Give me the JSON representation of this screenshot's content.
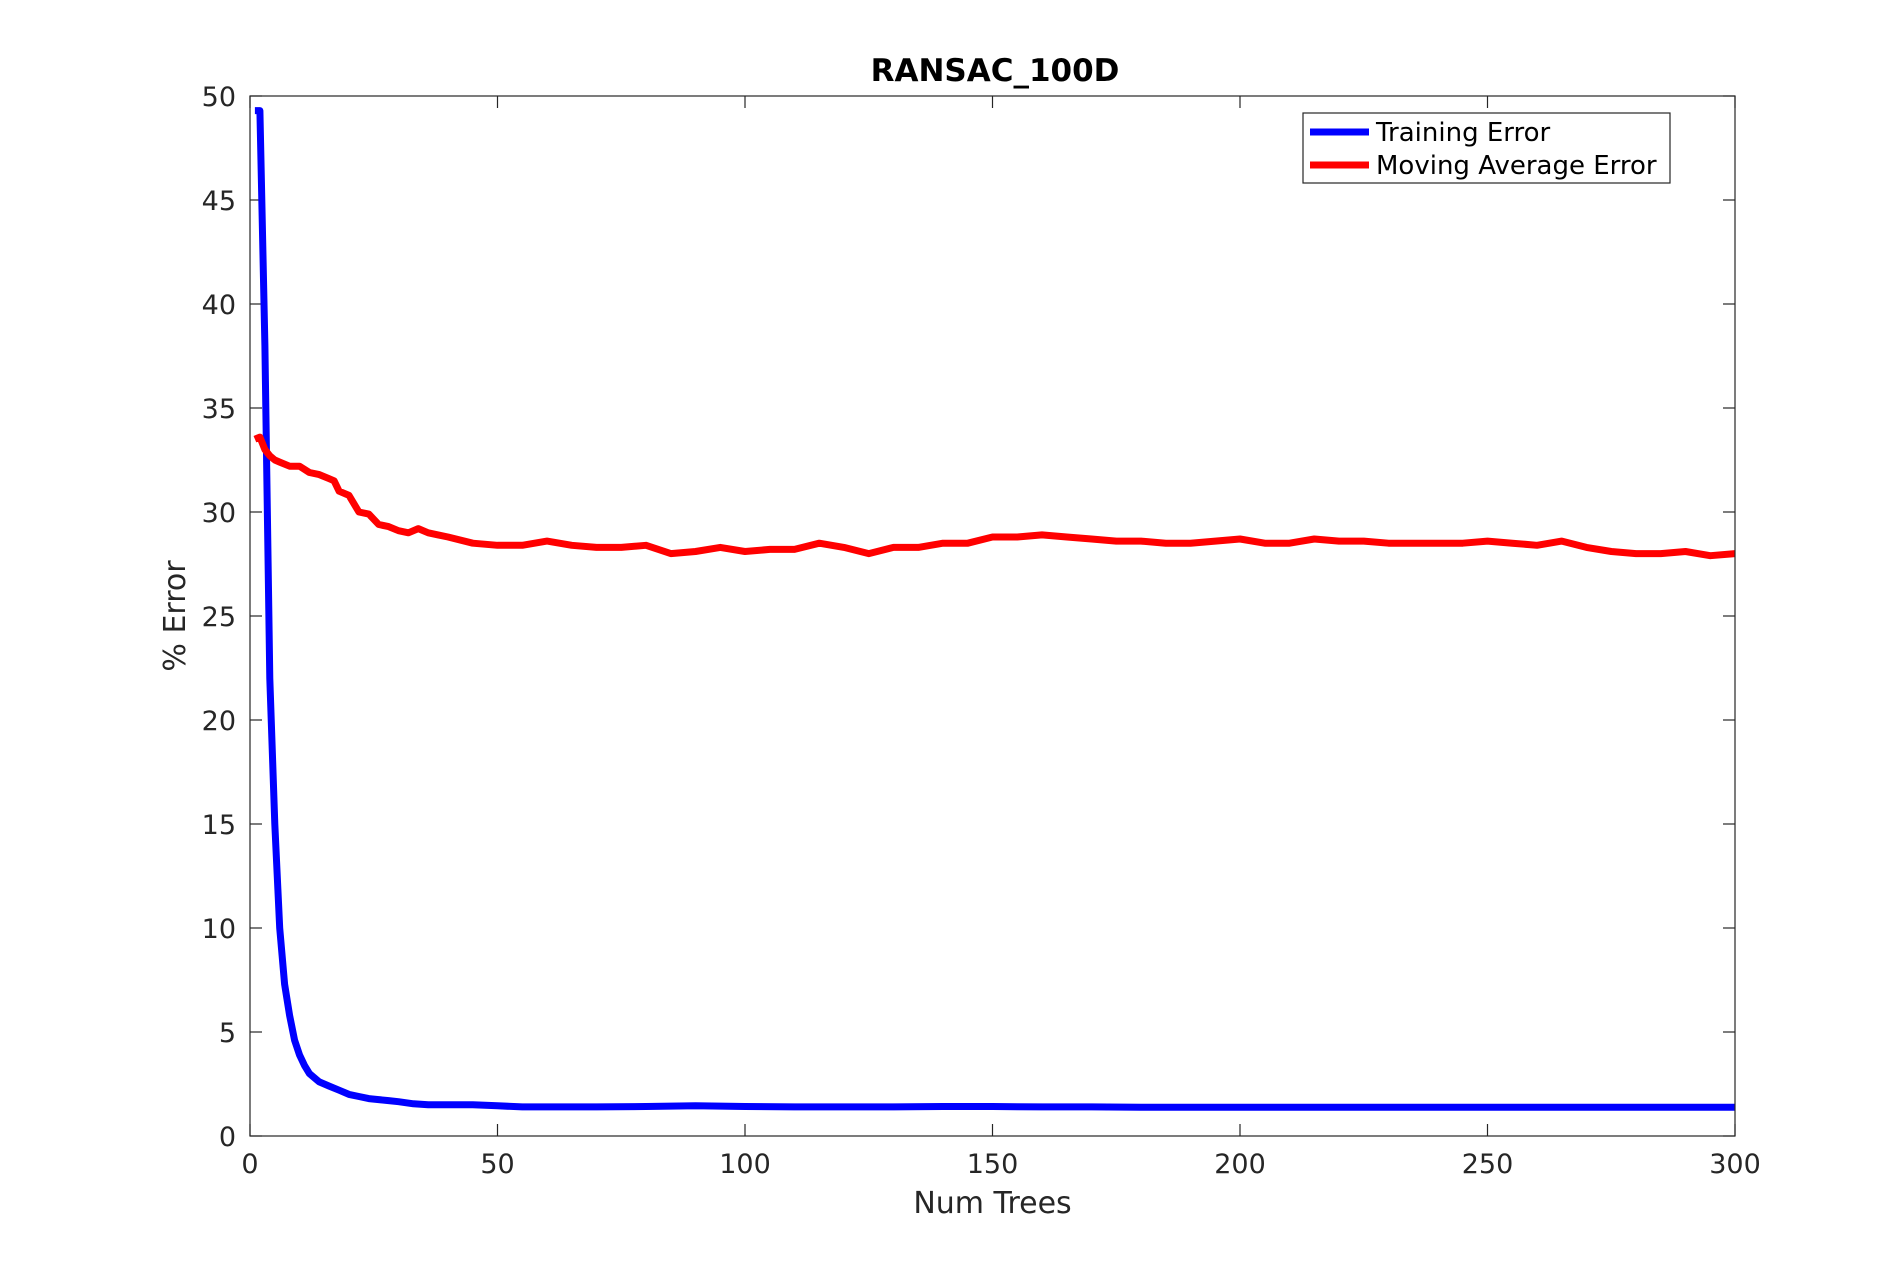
{
  "chart_data": {
    "type": "line",
    "title": "RANSAC_100D",
    "xlabel": "Num Trees",
    "ylabel": "% Error",
    "xlim": [
      0,
      300
    ],
    "ylim": [
      0,
      50
    ],
    "xticks": [
      0,
      50,
      100,
      150,
      200,
      250,
      300
    ],
    "yticks": [
      0,
      5,
      10,
      15,
      20,
      25,
      30,
      35,
      40,
      45,
      50
    ],
    "grid": false,
    "legend_position": "top-right",
    "series": [
      {
        "name": "Training Error",
        "color": "#0000ff",
        "x": [
          1,
          2,
          3,
          4,
          5,
          6,
          7,
          8,
          9,
          10,
          11,
          12,
          13,
          14,
          16,
          18,
          20,
          22,
          24,
          26,
          28,
          30,
          33,
          36,
          40,
          45,
          50,
          55,
          60,
          70,
          80,
          90,
          100,
          110,
          120,
          130,
          140,
          150,
          160,
          170,
          180,
          190,
          200,
          220,
          240,
          260,
          280,
          300
        ],
        "y": [
          49.3,
          49.3,
          38.0,
          22.0,
          15.0,
          10.0,
          7.3,
          5.8,
          4.6,
          3.9,
          3.4,
          3.0,
          2.8,
          2.6,
          2.4,
          2.2,
          2.0,
          1.9,
          1.8,
          1.75,
          1.7,
          1.65,
          1.55,
          1.5,
          1.5,
          1.5,
          1.45,
          1.4,
          1.4,
          1.4,
          1.42,
          1.45,
          1.42,
          1.4,
          1.4,
          1.4,
          1.42,
          1.42,
          1.4,
          1.4,
          1.38,
          1.38,
          1.38,
          1.38,
          1.38,
          1.38,
          1.38,
          1.38
        ]
      },
      {
        "name": "Moving Average Error",
        "color": "#ff0000",
        "x": [
          1,
          2,
          3,
          4,
          5,
          6,
          8,
          10,
          12,
          14,
          16,
          17,
          18,
          20,
          22,
          24,
          26,
          28,
          30,
          32,
          34,
          36,
          38,
          40,
          45,
          50,
          55,
          60,
          65,
          70,
          75,
          80,
          85,
          90,
          95,
          100,
          105,
          110,
          115,
          120,
          125,
          130,
          135,
          140,
          145,
          150,
          155,
          160,
          165,
          170,
          175,
          180,
          185,
          190,
          195,
          200,
          205,
          210,
          215,
          220,
          225,
          230,
          235,
          240,
          245,
          250,
          255,
          260,
          265,
          270,
          275,
          280,
          285,
          290,
          295,
          300
        ],
        "y": [
          33.5,
          33.6,
          33.0,
          32.7,
          32.5,
          32.4,
          32.2,
          32.2,
          31.9,
          31.8,
          31.6,
          31.5,
          31.0,
          30.8,
          30.0,
          29.9,
          29.4,
          29.3,
          29.1,
          29.0,
          29.2,
          29.0,
          28.9,
          28.8,
          28.5,
          28.4,
          28.4,
          28.6,
          28.4,
          28.3,
          28.3,
          28.4,
          28.0,
          28.1,
          28.3,
          28.1,
          28.2,
          28.2,
          28.5,
          28.3,
          28.0,
          28.3,
          28.3,
          28.5,
          28.5,
          28.8,
          28.8,
          28.9,
          28.8,
          28.7,
          28.6,
          28.6,
          28.5,
          28.5,
          28.6,
          28.7,
          28.5,
          28.5,
          28.7,
          28.6,
          28.6,
          28.5,
          28.5,
          28.5,
          28.5,
          28.6,
          28.5,
          28.4,
          28.6,
          28.3,
          28.1,
          28.0,
          28.0,
          28.1,
          27.9,
          28.0
        ]
      }
    ]
  }
}
